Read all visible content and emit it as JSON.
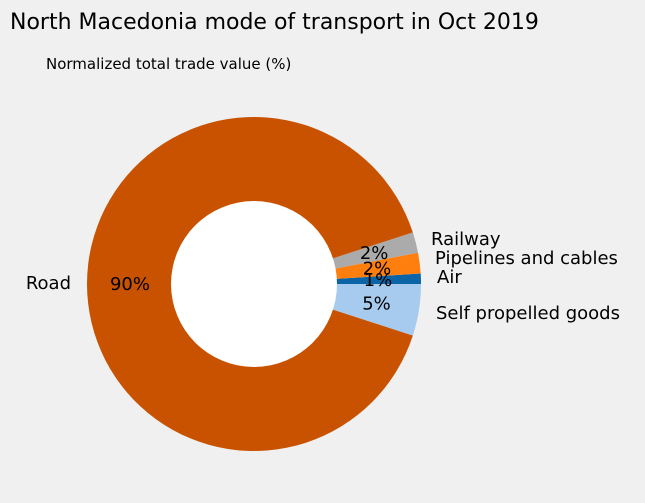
{
  "chart_data": {
    "type": "pie",
    "title": "North Macedonia mode of transport in Oct 2019",
    "subtitle": "Normalized total trade value (%)",
    "donut": true,
    "slices": [
      {
        "label": "Self propelled goods",
        "value": 5,
        "pct_label": "5%",
        "color": "#a6cbee"
      },
      {
        "label": "Air",
        "value": 1,
        "pct_label": "1%",
        "color": "#0b64a6"
      },
      {
        "label": "Pipelines and cables",
        "value": 2,
        "pct_label": "2%",
        "color": "#ff7f0e"
      },
      {
        "label": "Railway",
        "value": 2,
        "pct_label": "2%",
        "color": "#ababab"
      },
      {
        "label": "Road",
        "value": 90,
        "pct_label": "90%",
        "color": "#c85200"
      }
    ]
  }
}
